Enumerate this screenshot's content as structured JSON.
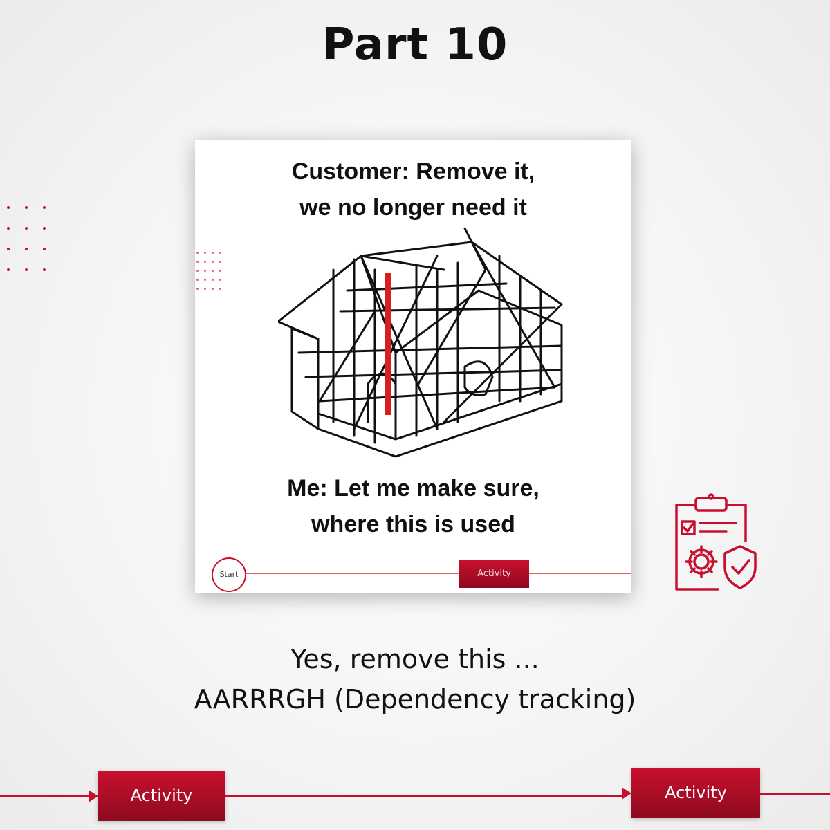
{
  "title": "Part 10",
  "meme": {
    "top_lines": [
      "Customer: Remove it,",
      "we no longer need it"
    ],
    "bottom_lines": [
      "Me: Let me make sure,",
      "where this is used"
    ],
    "flow": {
      "start_label": "Start",
      "activity_label": "Activity"
    }
  },
  "caption": {
    "lines": [
      "Yes, remove this ...",
      "AARRRGH (Dependency tracking)"
    ]
  },
  "flow": {
    "activities": [
      "Activity",
      "Activity"
    ]
  },
  "icons": {
    "checklist": "clipboard-checklist-gear-shield-icon",
    "decor": "dot-grid-icon"
  },
  "colors": {
    "accent": "#c8102e",
    "text": "#111111"
  }
}
